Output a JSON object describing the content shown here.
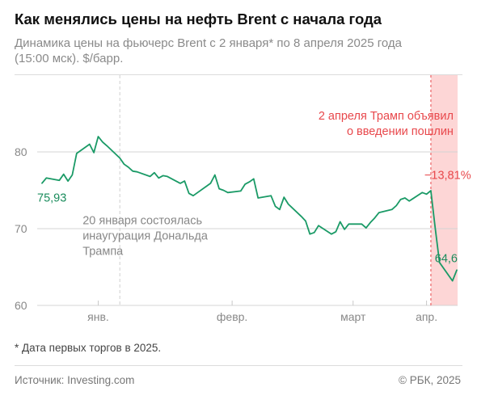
{
  "header": {
    "title": "Как менялись цены на нефть Brent с начала года",
    "subtitle_line1": "Динамика цены на фьючерс Brent с 2 января* по 8 апреля 2025 года",
    "subtitle_line2": "(15:00 мск). $/барр."
  },
  "footer": {
    "footnote": "* Дата первых торгов в 2025.",
    "source": "Источник: Investing.com",
    "copyright": "© РБК, 2025"
  },
  "colors": {
    "line": "#1a9a66",
    "highlight": "#fdd6d6",
    "accent_red": "#e8484c",
    "annotation_gray": "#8a8a8a"
  },
  "chart_data": {
    "type": "line",
    "title": "Как менялись цены на нефть Brent с начала года",
    "ylim": [
      60,
      90
    ],
    "yticks": [
      60,
      70,
      80
    ],
    "x_axis": {
      "start": "2025-01-02",
      "end": "2025-04-08",
      "ticks": [
        {
          "date": "2025-01-15",
          "label": "янв."
        },
        {
          "date": "2025-02-15",
          "label": "февр."
        },
        {
          "date": "2025-03-15",
          "label": "март"
        },
        {
          "date": "2025-04-01",
          "label": "апр."
        }
      ]
    },
    "series": [
      {
        "values": [
          {
            "date": "2025-01-02",
            "y": 75.93
          },
          {
            "date": "2025-01-03",
            "y": 76.6
          },
          {
            "date": "2025-01-06",
            "y": 76.3
          },
          {
            "date": "2025-01-07",
            "y": 77.1
          },
          {
            "date": "2025-01-08",
            "y": 76.2
          },
          {
            "date": "2025-01-09",
            "y": 77.0
          },
          {
            "date": "2025-01-10",
            "y": 79.8
          },
          {
            "date": "2025-01-13",
            "y": 81.0
          },
          {
            "date": "2025-01-14",
            "y": 79.9
          },
          {
            "date": "2025-01-15",
            "y": 82.0
          },
          {
            "date": "2025-01-16",
            "y": 81.3
          },
          {
            "date": "2025-01-17",
            "y": 80.8
          },
          {
            "date": "2025-01-20",
            "y": 79.2
          },
          {
            "date": "2025-01-21",
            "y": 78.4
          },
          {
            "date": "2025-01-22",
            "y": 78.0
          },
          {
            "date": "2025-01-23",
            "y": 77.5
          },
          {
            "date": "2025-01-24",
            "y": 77.4
          },
          {
            "date": "2025-01-27",
            "y": 76.8
          },
          {
            "date": "2025-01-28",
            "y": 77.3
          },
          {
            "date": "2025-01-29",
            "y": 76.6
          },
          {
            "date": "2025-01-30",
            "y": 76.9
          },
          {
            "date": "2025-01-31",
            "y": 76.8
          },
          {
            "date": "2025-02-03",
            "y": 75.9
          },
          {
            "date": "2025-02-04",
            "y": 76.2
          },
          {
            "date": "2025-02-05",
            "y": 74.6
          },
          {
            "date": "2025-02-06",
            "y": 74.3
          },
          {
            "date": "2025-02-07",
            "y": 74.7
          },
          {
            "date": "2025-02-10",
            "y": 75.9
          },
          {
            "date": "2025-02-11",
            "y": 77.0
          },
          {
            "date": "2025-02-12",
            "y": 75.2
          },
          {
            "date": "2025-02-13",
            "y": 75.0
          },
          {
            "date": "2025-02-14",
            "y": 74.7
          },
          {
            "date": "2025-02-17",
            "y": 74.9
          },
          {
            "date": "2025-02-18",
            "y": 75.8
          },
          {
            "date": "2025-02-19",
            "y": 76.1
          },
          {
            "date": "2025-02-20",
            "y": 76.5
          },
          {
            "date": "2025-02-21",
            "y": 74.0
          },
          {
            "date": "2025-02-24",
            "y": 74.3
          },
          {
            "date": "2025-02-25",
            "y": 72.9
          },
          {
            "date": "2025-02-26",
            "y": 72.5
          },
          {
            "date": "2025-02-27",
            "y": 74.1
          },
          {
            "date": "2025-02-28",
            "y": 73.2
          },
          {
            "date": "2025-03-03",
            "y": 71.6
          },
          {
            "date": "2025-03-04",
            "y": 71.0
          },
          {
            "date": "2025-03-05",
            "y": 69.3
          },
          {
            "date": "2025-03-06",
            "y": 69.5
          },
          {
            "date": "2025-03-07",
            "y": 70.4
          },
          {
            "date": "2025-03-10",
            "y": 69.3
          },
          {
            "date": "2025-03-11",
            "y": 69.6
          },
          {
            "date": "2025-03-12",
            "y": 70.9
          },
          {
            "date": "2025-03-13",
            "y": 69.9
          },
          {
            "date": "2025-03-14",
            "y": 70.6
          },
          {
            "date": "2025-03-17",
            "y": 70.6
          },
          {
            "date": "2025-03-18",
            "y": 70.1
          },
          {
            "date": "2025-03-19",
            "y": 70.8
          },
          {
            "date": "2025-03-20",
            "y": 71.4
          },
          {
            "date": "2025-03-21",
            "y": 72.1
          },
          {
            "date": "2025-03-24",
            "y": 72.5
          },
          {
            "date": "2025-03-25",
            "y": 73.0
          },
          {
            "date": "2025-03-26",
            "y": 73.8
          },
          {
            "date": "2025-03-27",
            "y": 74.0
          },
          {
            "date": "2025-03-28",
            "y": 73.6
          },
          {
            "date": "2025-03-31",
            "y": 74.7
          },
          {
            "date": "2025-04-01",
            "y": 74.5
          },
          {
            "date": "2025-04-02",
            "y": 74.95
          },
          {
            "date": "2025-04-03",
            "y": 70.1
          },
          {
            "date": "2025-04-04",
            "y": 65.6
          },
          {
            "date": "2025-04-07",
            "y": 63.2
          },
          {
            "date": "2025-04-08",
            "y": 64.6
          }
        ]
      }
    ],
    "start_label": "75,93",
    "end_label": "64,6",
    "change_label": "−13,81%",
    "annotations": {
      "inauguration": {
        "date": "2025-01-20",
        "lines": [
          "20 января состоялась",
          "инаугурация Дональда",
          "Трампа"
        ]
      },
      "tariffs": {
        "date": "2025-04-02",
        "lines": [
          "2 апреля Трамп объявил",
          "о введении пошлин"
        ]
      }
    }
  }
}
